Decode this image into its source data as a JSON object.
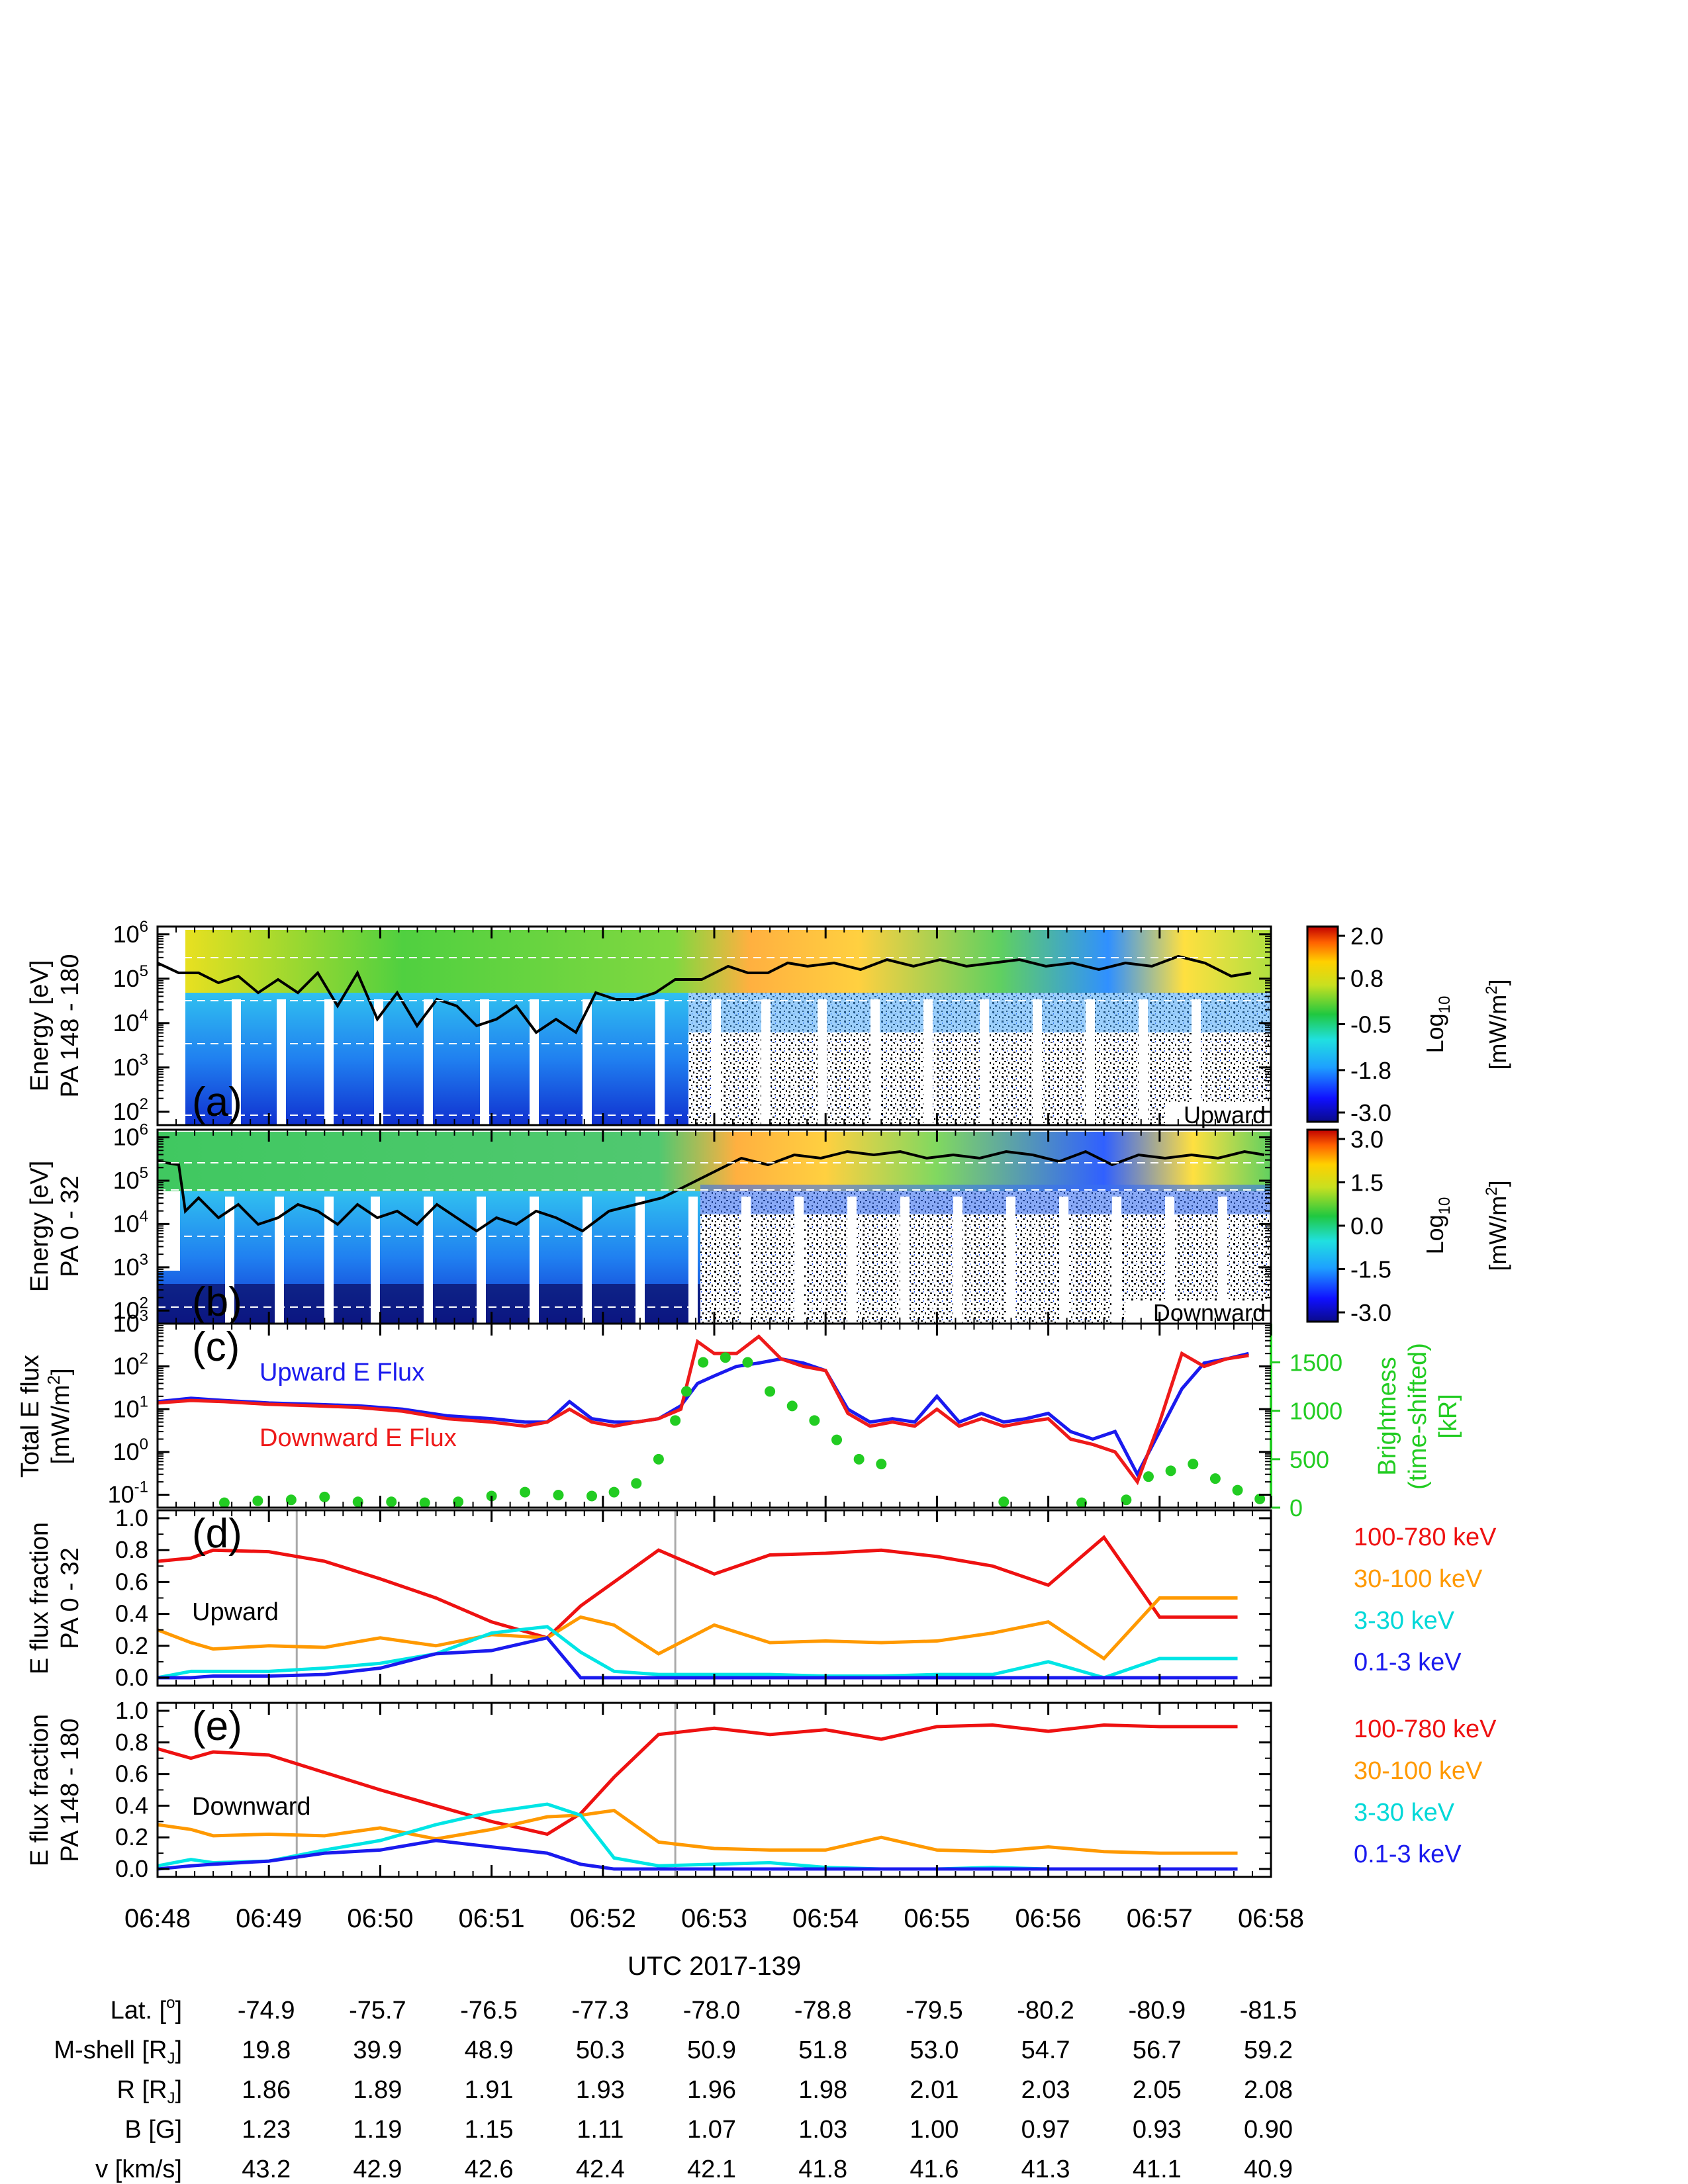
{
  "figure": {
    "x_ticks": [
      "06:48",
      "06:49",
      "06:50",
      "06:51",
      "06:52",
      "06:53",
      "06:54",
      "06:55",
      "06:56",
      "06:57",
      "06:58"
    ],
    "x_axis_label": "UTC 2017-139"
  },
  "chart_data": [
    {
      "id": "a",
      "type": "heatmap",
      "panel_label": "(a)",
      "ylabel_lines": [
        "Energy [eV]",
        "PA 148 - 180"
      ],
      "y_scale": "log",
      "ylim": [
        50,
        1500000
      ],
      "y_ticks": [
        {
          "base": "10",
          "exp": "2",
          "v": 100
        },
        {
          "base": "10",
          "exp": "3",
          "v": 1000
        },
        {
          "base": "10",
          "exp": "4",
          "v": 10000
        },
        {
          "base": "10",
          "exp": "5",
          "v": 100000
        },
        {
          "base": "10",
          "exp": "6",
          "v": 1000000
        }
      ],
      "corner_label": "Upward",
      "colorbar": {
        "ticks": [
          "2.0",
          "0.8",
          "-0.5",
          "-1.8",
          "-3.0"
        ],
        "range": [
          -3.0,
          2.0
        ],
        "unit_base": "Log",
        "unit_sub": "10",
        "unit_main": "[mW/m",
        "unit_sup": "2",
        "unit_end": "]"
      }
    },
    {
      "id": "b",
      "type": "heatmap",
      "panel_label": "(b)",
      "ylabel_lines": [
        "Energy [eV]",
        "PA 0 - 32"
      ],
      "y_scale": "log",
      "ylim": [
        50,
        1500000
      ],
      "y_ticks": [
        {
          "base": "10",
          "exp": "2",
          "v": 100
        },
        {
          "base": "10",
          "exp": "3",
          "v": 1000
        },
        {
          "base": "10",
          "exp": "4",
          "v": 10000
        },
        {
          "base": "10",
          "exp": "5",
          "v": 100000
        },
        {
          "base": "10",
          "exp": "6",
          "v": 1000000
        }
      ],
      "corner_label": "Downward",
      "colorbar": {
        "ticks": [
          "3.0",
          "1.5",
          "0.0",
          "-1.5",
          "-3.0"
        ],
        "range": [
          -3.0,
          3.0
        ],
        "unit_base": "Log",
        "unit_sub": "10",
        "unit_main": "[mW/m",
        "unit_sup": "2",
        "unit_end": "]"
      }
    },
    {
      "id": "c",
      "type": "line",
      "panel_label": "(c)",
      "ylabel_lines": [
        "Total E flux",
        "[mW/m",
        "2",
        "]"
      ],
      "y_scale": "log",
      "ylim": [
        0.05,
        1000
      ],
      "y_ticks": [
        {
          "base": "10",
          "exp": "-1",
          "v": 0.1
        },
        {
          "base": "10",
          "exp": "0",
          "v": 1
        },
        {
          "base": "10",
          "exp": "1",
          "v": 10
        },
        {
          "base": "10",
          "exp": "2",
          "v": 100
        },
        {
          "base": "10",
          "exp": "3",
          "v": 1000
        }
      ],
      "y2_label_lines": [
        "Brightness",
        "(time-shifted)",
        "[kR]"
      ],
      "y2_range": [
        0,
        1900
      ],
      "y2_ticks": [
        "0",
        "500",
        "1000",
        "1500"
      ],
      "y2_tick_values": [
        0,
        500,
        1000,
        1500
      ],
      "series": [
        {
          "name": "Upward E Flux",
          "color": "#1a1aee",
          "x": [
            48.0,
            48.3,
            48.6,
            49.0,
            49.4,
            49.8,
            50.2,
            50.6,
            51.0,
            51.3,
            51.5,
            51.7,
            51.9,
            52.1,
            52.3,
            52.5,
            52.7,
            52.85,
            53.0,
            53.2,
            53.4,
            53.6,
            53.8,
            54.0,
            54.2,
            54.4,
            54.6,
            54.8,
            55.0,
            55.2,
            55.4,
            55.6,
            55.8,
            56.0,
            56.2,
            56.4,
            56.6,
            56.8,
            57.0,
            57.2,
            57.4,
            57.6,
            57.8
          ],
          "y": [
            15,
            18,
            16,
            14,
            13,
            12,
            10,
            7,
            6,
            5,
            5,
            15,
            6,
            5,
            5,
            6,
            12,
            40,
            60,
            100,
            120,
            150,
            120,
            80,
            10,
            5,
            6,
            5,
            20,
            5,
            8,
            5,
            6,
            8,
            3,
            2,
            3,
            0.3,
            3,
            30,
            120,
            150,
            200
          ]
        },
        {
          "name": "Downward E Flux",
          "color": "#ee1a1a",
          "x": [
            48.0,
            48.3,
            48.6,
            49.0,
            49.4,
            49.8,
            50.2,
            50.6,
            51.0,
            51.3,
            51.5,
            51.7,
            51.9,
            52.1,
            52.3,
            52.5,
            52.7,
            52.85,
            53.0,
            53.2,
            53.4,
            53.6,
            53.8,
            54.0,
            54.2,
            54.4,
            54.6,
            54.8,
            55.0,
            55.2,
            55.4,
            55.6,
            55.8,
            56.0,
            56.2,
            56.4,
            56.6,
            56.8,
            57.0,
            57.2,
            57.4,
            57.6,
            57.8
          ],
          "y": [
            14,
            16,
            15,
            13,
            12,
            11,
            9,
            6,
            5,
            4,
            5,
            10,
            5,
            4,
            5,
            6,
            10,
            380,
            200,
            200,
            500,
            150,
            100,
            80,
            8,
            4,
            5,
            4,
            10,
            4,
            6,
            4,
            5,
            6,
            2,
            1.5,
            1,
            0.2,
            5,
            200,
            100,
            150,
            180
          ]
        },
        {
          "name": "Brightness",
          "color": "#22cc22",
          "axis": "y2",
          "x": [
            48.6,
            48.9,
            49.2,
            49.5,
            49.8,
            50.1,
            50.4,
            50.7,
            51.0,
            51.3,
            51.6,
            51.9,
            52.1,
            52.3,
            52.5,
            52.65,
            52.75,
            52.9,
            53.1,
            53.3,
            53.5,
            53.7,
            53.9,
            54.1,
            54.3,
            54.5,
            55.6,
            56.3,
            56.7,
            56.9,
            57.1,
            57.3,
            57.5,
            57.7,
            57.9
          ],
          "y": [
            50,
            70,
            80,
            110,
            60,
            60,
            50,
            60,
            120,
            160,
            130,
            120,
            160,
            250,
            500,
            900,
            1200,
            1500,
            1550,
            1500,
            1200,
            1050,
            900,
            700,
            500,
            450,
            60,
            50,
            80,
            320,
            380,
            450,
            300,
            180,
            90
          ]
        }
      ]
    },
    {
      "id": "d",
      "type": "line",
      "panel_label": "(d)",
      "ylabel_lines": [
        "E flux fraction",
        "PA 0 - 32"
      ],
      "ylim": [
        -0.05,
        1.05
      ],
      "y_ticks": [
        {
          "t": "0.0",
          "v": 0
        },
        {
          "t": "0.2",
          "v": 0.2
        },
        {
          "t": "0.4",
          "v": 0.4
        },
        {
          "t": "0.6",
          "v": 0.6
        },
        {
          "t": "0.8",
          "v": 0.8
        },
        {
          "t": "1.0",
          "v": 1.0
        }
      ],
      "annotation": "Upward",
      "vlines": [
        49.25,
        52.65
      ],
      "x": [
        48.0,
        48.3,
        48.5,
        49.0,
        49.5,
        50.0,
        50.5,
        51.0,
        51.5,
        51.8,
        52.1,
        52.5,
        53.0,
        53.5,
        54.0,
        54.5,
        55.0,
        55.5,
        56.0,
        56.5,
        57.0,
        57.3,
        57.7
      ],
      "series": [
        {
          "name": "100-780 keV",
          "color": "#ee1111",
          "values": [
            0.73,
            0.75,
            0.8,
            0.79,
            0.73,
            0.62,
            0.5,
            0.35,
            0.25,
            0.45,
            0.6,
            0.8,
            0.65,
            0.77,
            0.78,
            0.8,
            0.76,
            0.7,
            0.58,
            0.88,
            0.38,
            0.38,
            0.38
          ]
        },
        {
          "name": "30-100 keV",
          "color": "#ff9900",
          "values": [
            0.3,
            0.22,
            0.18,
            0.2,
            0.19,
            0.25,
            0.2,
            0.27,
            0.25,
            0.38,
            0.33,
            0.15,
            0.33,
            0.22,
            0.23,
            0.22,
            0.23,
            0.28,
            0.35,
            0.12,
            0.5,
            0.5,
            0.5
          ]
        },
        {
          "name": "3-30 keV",
          "color": "#00e5e5",
          "values": [
            0.0,
            0.04,
            0.04,
            0.04,
            0.06,
            0.09,
            0.15,
            0.28,
            0.32,
            0.16,
            0.04,
            0.02,
            0.02,
            0.02,
            0.01,
            0.01,
            0.02,
            0.02,
            0.1,
            0.0,
            0.12,
            0.12,
            0.12
          ]
        },
        {
          "name": "0.1-3 keV",
          "color": "#1a1aee",
          "values": [
            0.0,
            0.0,
            0.01,
            0.01,
            0.02,
            0.06,
            0.15,
            0.17,
            0.25,
            0.0,
            0.0,
            0.0,
            0.0,
            0.0,
            0.0,
            0.0,
            0.0,
            0.0,
            0.0,
            0.0,
            0.0,
            0.0,
            0.0
          ]
        }
      ]
    },
    {
      "id": "e",
      "type": "line",
      "panel_label": "(e)",
      "ylabel_lines": [
        "E flux fraction",
        "PA 148 - 180"
      ],
      "ylim": [
        -0.05,
        1.05
      ],
      "y_ticks": [
        {
          "t": "0.0",
          "v": 0
        },
        {
          "t": "0.2",
          "v": 0.2
        },
        {
          "t": "0.4",
          "v": 0.4
        },
        {
          "t": "0.6",
          "v": 0.6
        },
        {
          "t": "0.8",
          "v": 0.8
        },
        {
          "t": "1.0",
          "v": 1.0
        }
      ],
      "annotation": "Downward",
      "vlines": [
        49.25,
        52.65
      ],
      "x": [
        48.0,
        48.3,
        48.5,
        49.0,
        49.5,
        50.0,
        50.5,
        51.0,
        51.5,
        51.8,
        52.1,
        52.5,
        53.0,
        53.5,
        54.0,
        54.5,
        55.0,
        55.5,
        56.0,
        56.5,
        57.0,
        57.3,
        57.7
      ],
      "series": [
        {
          "name": "100-780 keV",
          "color": "#ee1111",
          "values": [
            0.76,
            0.7,
            0.74,
            0.72,
            0.61,
            0.5,
            0.4,
            0.3,
            0.22,
            0.35,
            0.58,
            0.85,
            0.89,
            0.85,
            0.88,
            0.82,
            0.9,
            0.91,
            0.87,
            0.91,
            0.9,
            0.9,
            0.9
          ]
        },
        {
          "name": "30-100 keV",
          "color": "#ff9900",
          "values": [
            0.28,
            0.25,
            0.21,
            0.22,
            0.21,
            0.26,
            0.19,
            0.25,
            0.33,
            0.34,
            0.37,
            0.17,
            0.13,
            0.12,
            0.12,
            0.2,
            0.12,
            0.11,
            0.14,
            0.11,
            0.1,
            0.1,
            0.1
          ]
        },
        {
          "name": "3-30 keV",
          "color": "#00e5e5",
          "values": [
            0.02,
            0.06,
            0.04,
            0.05,
            0.12,
            0.18,
            0.28,
            0.36,
            0.41,
            0.34,
            0.07,
            0.02,
            0.03,
            0.04,
            0.01,
            0.0,
            0.0,
            0.01,
            0.0,
            0.0,
            0.0,
            0.0,
            0.0
          ]
        },
        {
          "name": "0.1-3 keV",
          "color": "#1a1aee",
          "values": [
            0.0,
            0.02,
            0.03,
            0.05,
            0.1,
            0.12,
            0.18,
            0.14,
            0.1,
            0.03,
            0.0,
            0.0,
            0.0,
            0.0,
            0.0,
            0.0,
            0.0,
            0.0,
            0.0,
            0.0,
            0.0,
            0.0,
            0.0
          ]
        }
      ]
    }
  ],
  "legend": {
    "c_labels": [
      "Upward E Flux",
      "Downward E Flux"
    ],
    "de_labels": [
      "100-780 keV",
      "30-100 keV",
      "3-30 keV",
      "0.1-3 keV"
    ],
    "de_colors": [
      "#ee1111",
      "#ff9900",
      "#00e5e5",
      "#1a1aee"
    ]
  },
  "ephemeris": {
    "rows": [
      {
        "label": "Lat. [",
        "label_sup": "o",
        "label_sub": "",
        "label_end": "]",
        "values": [
          "-74.9",
          "-75.7",
          "-76.5",
          "-77.3",
          "-78.0",
          "-78.8",
          "-79.5",
          "-80.2",
          "-80.9",
          "-81.5"
        ]
      },
      {
        "label": "M-shell [R",
        "label_sup": "",
        "label_sub": "J",
        "label_end": "]",
        "values": [
          "19.8",
          "39.9",
          "48.9",
          "50.3",
          "50.9",
          "51.8",
          "53.0",
          "54.7",
          "56.7",
          "59.2"
        ]
      },
      {
        "label": "R [R",
        "label_sup": "",
        "label_sub": "J",
        "label_end": "]",
        "values": [
          "1.86",
          "1.89",
          "1.91",
          "1.93",
          "1.96",
          "1.98",
          "2.01",
          "2.03",
          "2.05",
          "2.08"
        ]
      },
      {
        "label": "B [G]",
        "label_sup": "",
        "label_sub": "",
        "label_end": "",
        "values": [
          "1.23",
          "1.19",
          "1.15",
          "1.11",
          "1.07",
          "1.03",
          "1.00",
          "0.97",
          "0.93",
          "0.90"
        ]
      },
      {
        "label": "v [km/s]",
        "label_sup": "",
        "label_sub": "",
        "label_end": "",
        "values": [
          "43.2",
          "42.9",
          "42.6",
          "42.4",
          "42.1",
          "41.8",
          "41.6",
          "41.3",
          "41.1",
          "40.9"
        ]
      }
    ]
  }
}
